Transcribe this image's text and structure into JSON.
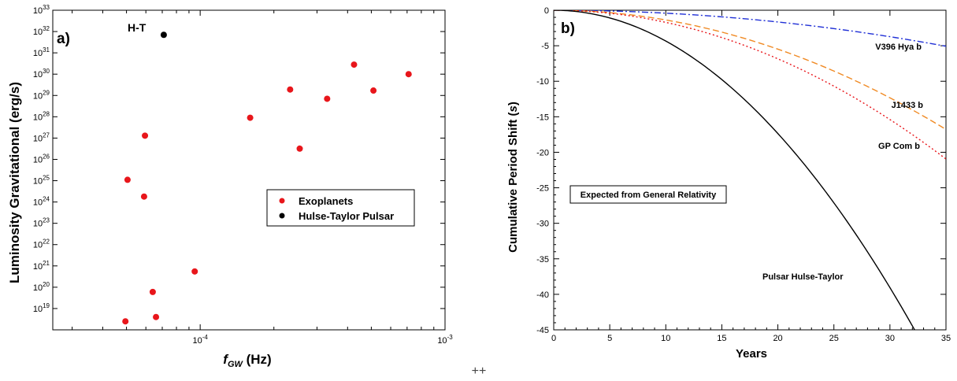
{
  "chart_data": [
    {
      "type": "scatter",
      "panel_label": "a)",
      "xlabel_main": "f",
      "xlabel_sub": "GW",
      "xlabel_unit": " (Hz)",
      "ylabel": "Luminosity Gravitational (erg/s)",
      "x_scale": "log",
      "y_scale": "log",
      "xlim": [
        2.5e-05,
        0.001
      ],
      "ylim": [
        1e+18,
        1e+33
      ],
      "x_tick_labels": [
        {
          "base": "10",
          "exp": "-4",
          "value": 0.0001
        },
        {
          "base": "10",
          "exp": "-3",
          "value": 0.001
        }
      ],
      "y_tick_labels": [
        {
          "base": "10",
          "exp": "19",
          "value": 1e+19
        },
        {
          "base": "10",
          "exp": "20",
          "value": 1e+20
        },
        {
          "base": "10",
          "exp": "21",
          "value": 1e+21
        },
        {
          "base": "10",
          "exp": "22",
          "value": 1e+22
        },
        {
          "base": "10",
          "exp": "23",
          "value": 1e+23
        },
        {
          "base": "10",
          "exp": "24",
          "value": 1e+24
        },
        {
          "base": "10",
          "exp": "25",
          "value": 1e+25
        },
        {
          "base": "10",
          "exp": "26",
          "value": 1e+26
        },
        {
          "base": "10",
          "exp": "27",
          "value": 1e+27
        },
        {
          "base": "10",
          "exp": "28",
          "value": 1e+28
        },
        {
          "base": "10",
          "exp": "29",
          "value": 1e+29
        },
        {
          "base": "10",
          "exp": "30",
          "value": 1e+30
        },
        {
          "base": "10",
          "exp": "31",
          "value": 1e+31
        },
        {
          "base": "10",
          "exp": "32",
          "value": 1e+32
        },
        {
          "base": "10",
          "exp": "33",
          "value": 1e+33
        }
      ],
      "annotation": "H-T",
      "legend_position": "center-right",
      "series": [
        {
          "name": "Exoplanets",
          "color": "#e8161b",
          "points": [
            {
              "x": 4.95e-05,
              "y": 2.5e+18
            },
            {
              "x": 5.05e-05,
              "y": 1.1e+25
            },
            {
              "x": 5.9e-05,
              "y": 1.8e+24
            },
            {
              "x": 5.95e-05,
              "y": 1.3e+27
            },
            {
              "x": 6.4e-05,
              "y": 6e+19
            },
            {
              "x": 6.6e-05,
              "y": 4e+18
            },
            {
              "x": 9.5e-05,
              "y": 5.5e+20
            },
            {
              "x": 0.00016,
              "y": 9e+27
            },
            {
              "x": 0.000233,
              "y": 1.9e+29
            },
            {
              "x": 0.000255,
              "y": 3.2e+26
            },
            {
              "x": 0.00033,
              "y": 7e+28
            },
            {
              "x": 0.000425,
              "y": 2.8e+30
            },
            {
              "x": 0.00051,
              "y": 1.7e+29
            },
            {
              "x": 0.00071,
              "y": 1e+30
            }
          ]
        },
        {
          "name": "Hulse-Taylor Pulsar",
          "color": "#000000",
          "points": [
            {
              "x": 7.1e-05,
              "y": 7e+31
            }
          ]
        }
      ]
    },
    {
      "type": "line",
      "panel_label": "b)",
      "xlabel": "Years",
      "ylabel_prefix": "Cumulative Period Shift (",
      "ylabel_italic": "s",
      "ylabel_suffix": ")",
      "xlim": [
        0,
        35
      ],
      "ylim": [
        -45,
        0
      ],
      "x_ticks": [
        0,
        5,
        10,
        15,
        20,
        25,
        30,
        35
      ],
      "y_ticks": [
        0,
        -5,
        -10,
        -15,
        -20,
        -25,
        -30,
        -35,
        -40,
        -45
      ],
      "annotation_box": "Expected from General Relativity",
      "series": [
        {
          "name": "V396 Hya b",
          "color": "#1f2fd6",
          "style": "dashdot",
          "k": -0.00414
        },
        {
          "name": "J1433 b",
          "color": "#f08a24",
          "style": "dashed",
          "k": -0.0137
        },
        {
          "name": "GP Com b",
          "color": "#e8161b",
          "style": "dotted",
          "k": -0.0171
        },
        {
          "name": "Pulsar Hulse-Taylor",
          "color": "#000000",
          "style": "solid",
          "k": -0.0434
        }
      ]
    }
  ],
  "footer_mark": "++"
}
